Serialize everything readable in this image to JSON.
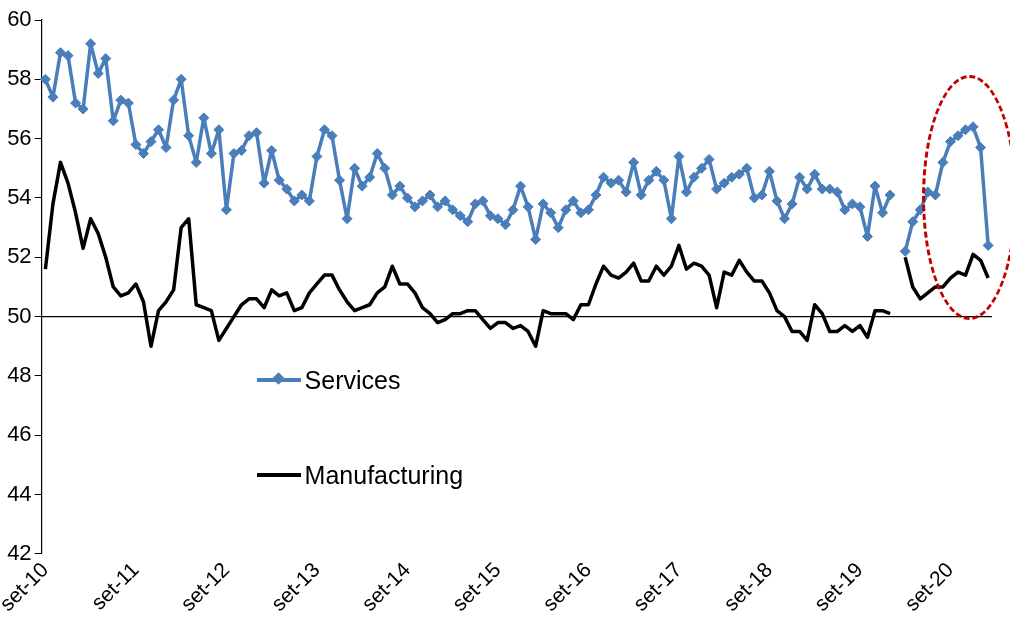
{
  "chart_data": {
    "type": "line",
    "categories": [
      "set-10",
      null,
      null,
      null,
      null,
      null,
      null,
      null,
      null,
      null,
      null,
      null,
      "set-11",
      null,
      null,
      null,
      null,
      null,
      null,
      null,
      null,
      null,
      null,
      null,
      "set-12",
      null,
      null,
      null,
      null,
      null,
      null,
      null,
      null,
      null,
      null,
      null,
      "set-13",
      null,
      null,
      null,
      null,
      null,
      null,
      null,
      null,
      null,
      null,
      null,
      "set-14",
      null,
      null,
      null,
      null,
      null,
      null,
      null,
      null,
      null,
      null,
      null,
      "set-15",
      null,
      null,
      null,
      null,
      null,
      null,
      null,
      null,
      null,
      null,
      null,
      "set-16",
      null,
      null,
      null,
      null,
      null,
      null,
      null,
      null,
      null,
      null,
      null,
      "set-17",
      null,
      null,
      null,
      null,
      null,
      null,
      null,
      null,
      null,
      null,
      null,
      "set-18",
      null,
      null,
      null,
      null,
      null,
      null,
      null,
      null,
      null,
      null,
      null,
      "set-19",
      null,
      null,
      null,
      null,
      null,
      null,
      null,
      null,
      null,
      null,
      null,
      "set-20",
      null,
      null,
      null,
      null,
      null
    ],
    "series": [
      {
        "name": "Services",
        "color": "#4a7ebb",
        "marker": "diamond",
        "values": [
          58.0,
          57.4,
          58.9,
          58.8,
          57.2,
          57.0,
          59.2,
          58.2,
          58.7,
          56.6,
          57.3,
          57.2,
          55.8,
          55.5,
          55.9,
          56.3,
          55.7,
          57.3,
          58.0,
          56.1,
          55.2,
          56.7,
          55.5,
          56.3,
          53.6,
          55.5,
          55.6,
          56.1,
          56.2,
          54.5,
          55.6,
          54.6,
          54.3,
          53.9,
          54.1,
          53.9,
          55.4,
          56.3,
          56.1,
          54.6,
          53.3,
          55.0,
          54.4,
          54.7,
          55.5,
          55.0,
          54.1,
          54.4,
          54.0,
          53.7,
          53.9,
          54.1,
          53.7,
          53.9,
          53.6,
          53.4,
          53.2,
          53.8,
          53.9,
          53.4,
          53.3,
          53.1,
          53.6,
          54.4,
          53.7,
          52.6,
          53.8,
          53.5,
          53.0,
          53.6,
          53.9,
          53.5,
          53.6,
          54.1,
          54.7,
          54.5,
          54.6,
          54.2,
          55.2,
          54.1,
          54.6,
          54.9,
          54.6,
          53.3,
          55.4,
          54.2,
          54.7,
          55.0,
          55.3,
          54.3,
          54.5,
          54.7,
          54.8,
          55.0,
          54.0,
          54.1,
          54.9,
          53.9,
          53.3,
          53.8,
          54.7,
          54.3,
          54.8,
          54.3,
          54.3,
          54.2,
          53.6,
          53.8,
          53.7,
          52.7,
          54.4,
          53.5,
          54.1,
          null,
          52.2,
          53.2,
          53.6,
          54.2,
          54.1,
          55.2,
          55.9,
          56.1,
          56.3,
          56.4,
          55.7,
          52.4
        ]
      },
      {
        "name": "Manufacturing",
        "color": "#000000",
        "marker": "none",
        "values": [
          51.6,
          53.8,
          55.2,
          54.5,
          53.5,
          52.3,
          53.3,
          52.8,
          52.0,
          51.0,
          50.7,
          50.8,
          51.1,
          50.5,
          49.0,
          50.2,
          50.5,
          50.9,
          53.0,
          53.3,
          50.4,
          50.3,
          50.2,
          49.2,
          49.6,
          50.0,
          50.4,
          50.6,
          50.6,
          50.3,
          50.9,
          50.7,
          50.8,
          50.2,
          50.3,
          50.8,
          51.1,
          51.4,
          51.4,
          50.9,
          50.5,
          50.2,
          50.3,
          50.4,
          50.8,
          51.0,
          51.7,
          51.1,
          51.1,
          50.8,
          50.3,
          50.1,
          49.8,
          49.9,
          50.1,
          50.1,
          50.2,
          50.2,
          49.9,
          49.6,
          49.8,
          49.8,
          49.6,
          49.7,
          49.5,
          49.0,
          50.2,
          50.1,
          50.1,
          50.1,
          49.9,
          50.4,
          50.4,
          51.1,
          51.7,
          51.4,
          51.3,
          51.5,
          51.8,
          51.2,
          51.2,
          51.7,
          51.4,
          51.7,
          52.4,
          51.6,
          51.8,
          51.7,
          51.4,
          50.3,
          51.5,
          51.4,
          51.9,
          51.5,
          51.2,
          51.2,
          50.8,
          50.2,
          50.0,
          49.5,
          49.5,
          49.2,
          50.4,
          50.1,
          49.5,
          49.5,
          49.7,
          49.5,
          49.7,
          49.3,
          50.2,
          50.2,
          50.1,
          null,
          52.0,
          51.0,
          50.6,
          50.8,
          51.0,
          51.0,
          51.3,
          51.5,
          51.4,
          52.1,
          51.9,
          51.3
        ]
      }
    ],
    "ylim": [
      42,
      60
    ],
    "yticks": [
      42,
      44,
      46,
      48,
      50,
      52,
      54,
      56,
      58,
      60
    ],
    "ref_lines": [
      {
        "axis": "y",
        "value": 50,
        "color": "#000000"
      }
    ],
    "grid": false,
    "legend": "bottom left",
    "line_style": "solid"
  }
}
